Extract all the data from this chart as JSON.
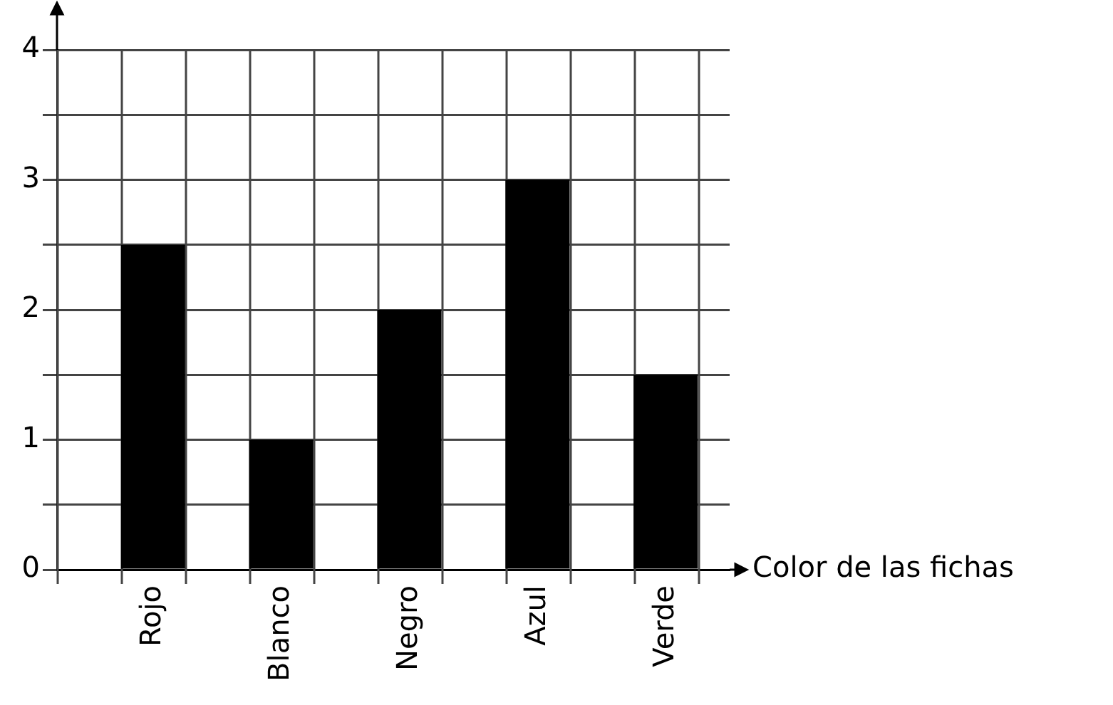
{
  "chart_data": {
    "type": "bar",
    "xlabel": "Color de las fichas",
    "categories": [
      "Rojo",
      "Blanco",
      "Negro",
      "Azul",
      "Verde"
    ],
    "values": [
      2.5,
      1,
      2,
      3,
      1.5
    ],
    "color": "#000000",
    "ylim": [
      0,
      4
    ],
    "yticks": [
      0,
      {
        "value": 0.5,
        "label": null
      },
      1,
      {
        "value": 1.5,
        "label": null
      },
      2,
      {
        "value": 2.5,
        "label": null
      },
      3,
      {
        "value": 3.5,
        "label": null
      },
      4
    ],
    "grid": true
  }
}
